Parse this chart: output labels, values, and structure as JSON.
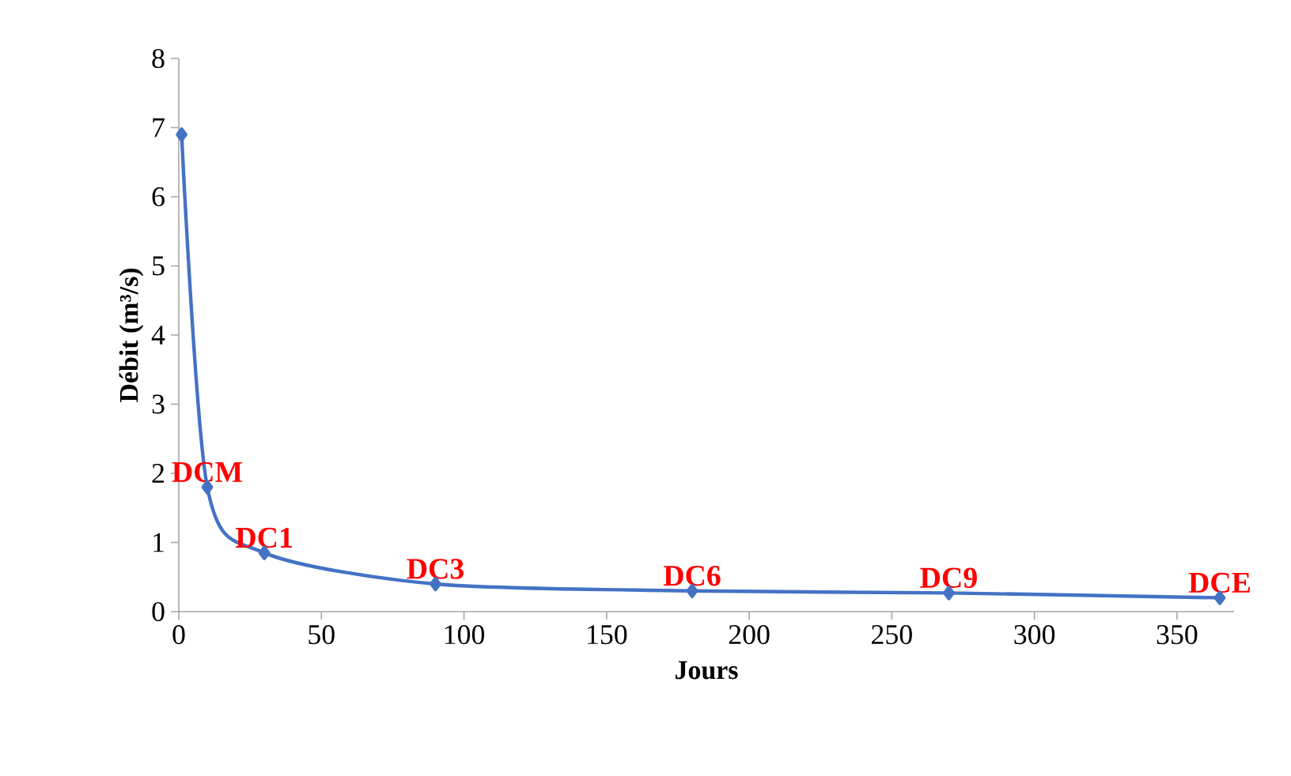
{
  "chart_data": {
    "type": "line",
    "xlabel": "Jours",
    "ylabel": "Débit (m³/s)",
    "x": [
      1,
      10,
      30,
      90,
      180,
      270,
      365
    ],
    "series": [
      {
        "color": "#4472c4",
        "values": [
          6.9,
          1.8,
          0.85,
          0.4,
          0.3,
          0.27,
          0.2
        ]
      }
    ],
    "marker": "diamond",
    "line_style": "solid",
    "grid": false,
    "xlim": [
      0,
      370
    ],
    "ylim": [
      0,
      8
    ],
    "xticks": [
      0,
      50,
      100,
      150,
      200,
      250,
      300,
      350
    ],
    "yticks": [
      0,
      1,
      2,
      3,
      4,
      5,
      6,
      7,
      8
    ],
    "annotations": [
      {
        "text": "DCM",
        "x": 10,
        "y": 1.8
      },
      {
        "text": "DC1",
        "x": 30,
        "y": 0.85
      },
      {
        "text": "DC3",
        "x": 90,
        "y": 0.4
      },
      {
        "text": "DC6",
        "x": 180,
        "y": 0.3
      },
      {
        "text": "DC9",
        "x": 270,
        "y": 0.27
      },
      {
        "text": "DCE",
        "x": 365,
        "y": 0.2
      }
    ]
  }
}
